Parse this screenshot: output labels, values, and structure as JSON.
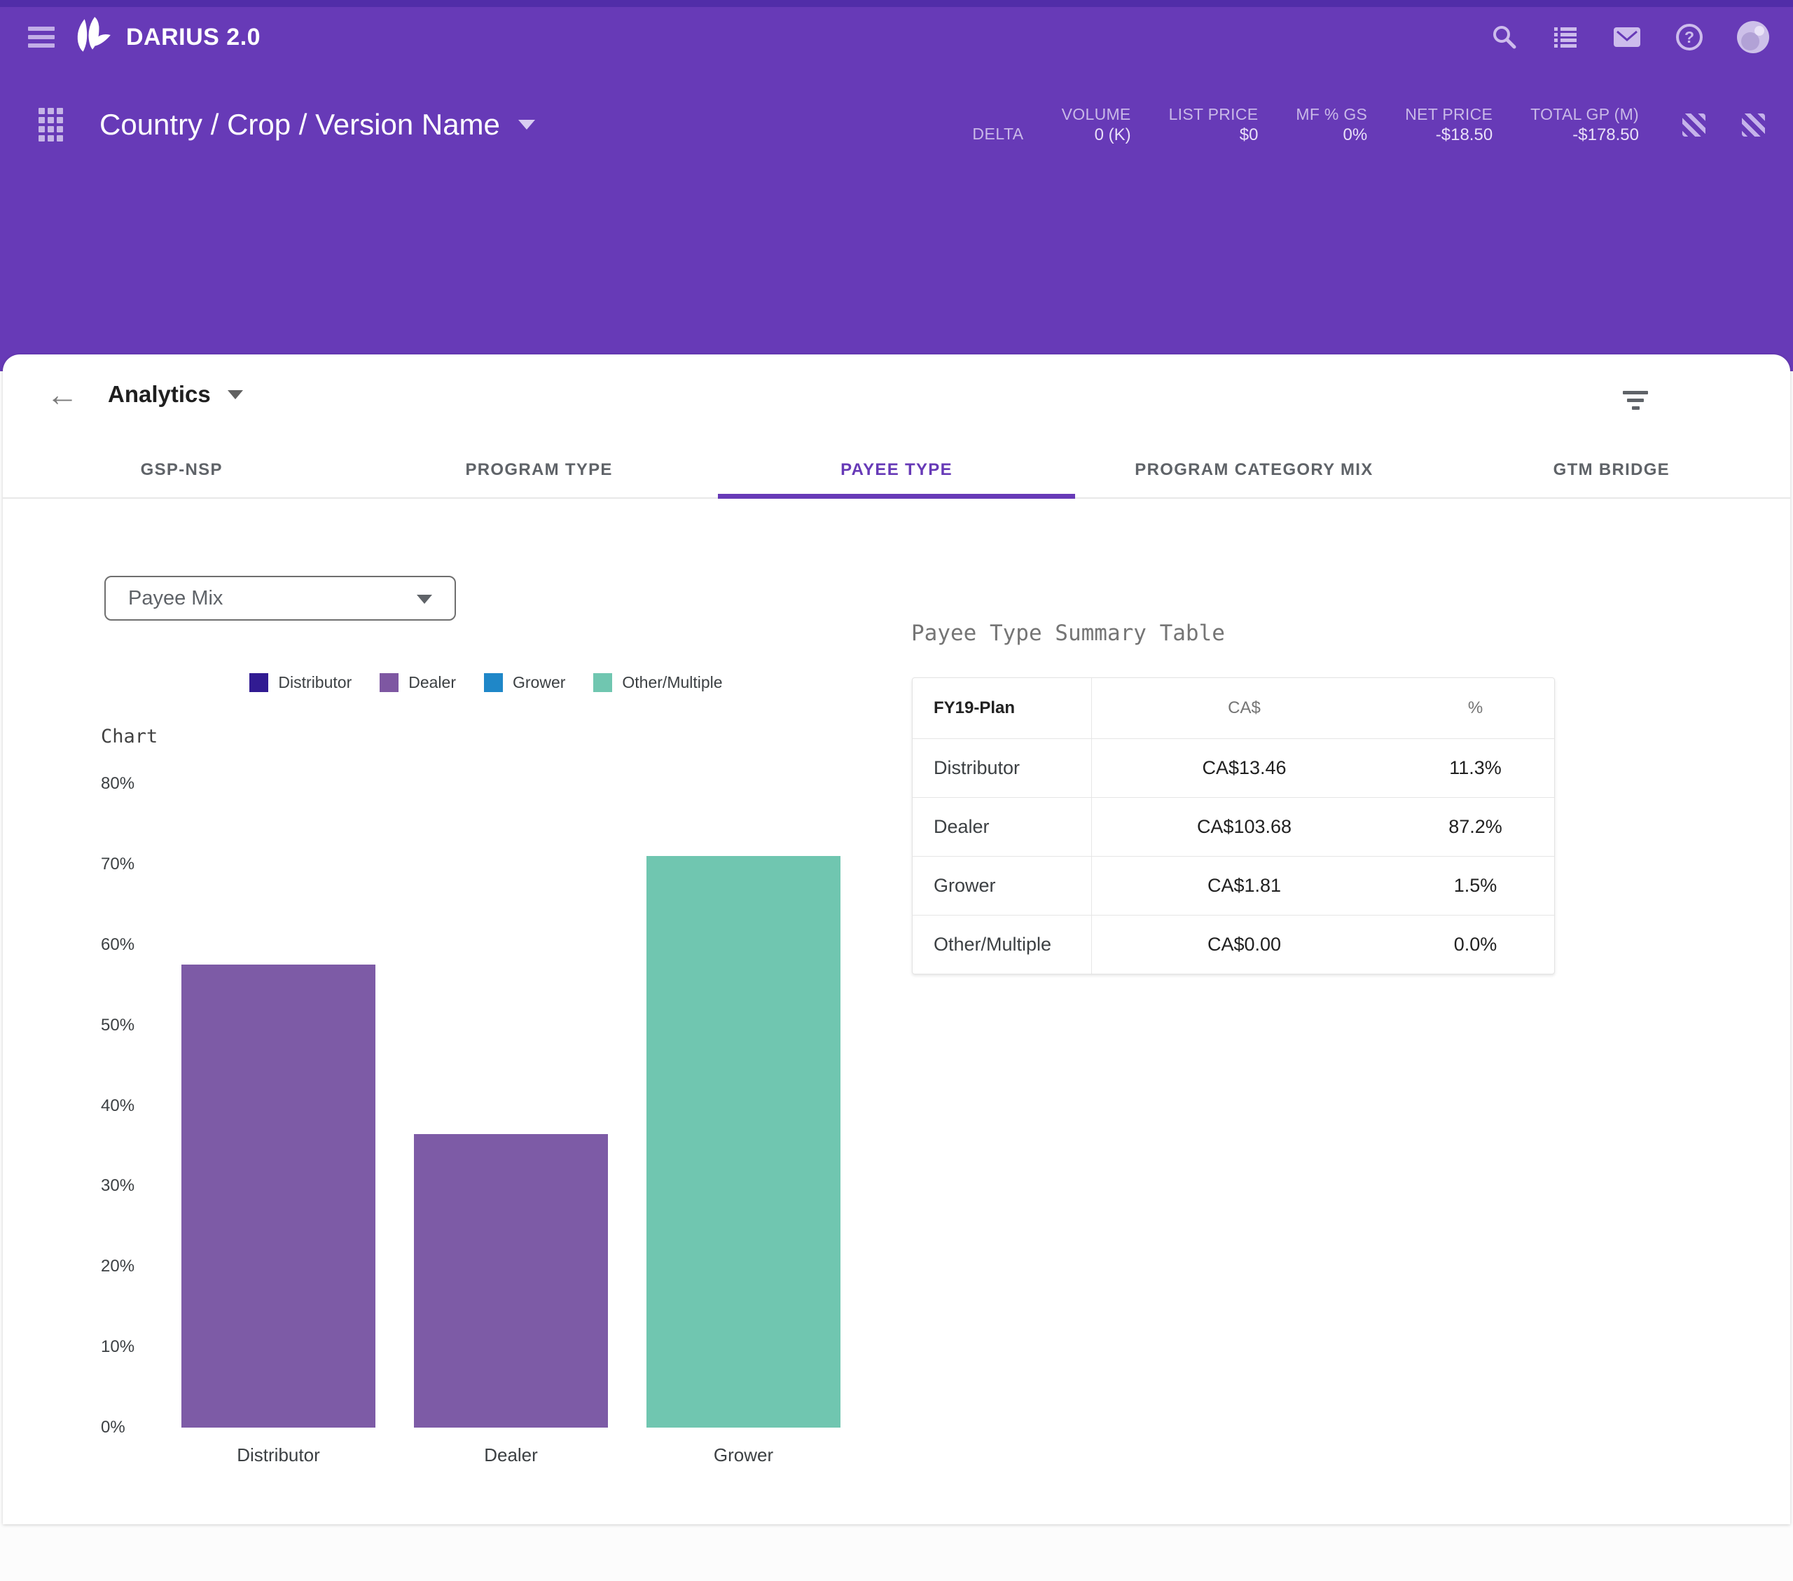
{
  "colors": {
    "app_bar": "#673ab7",
    "app_bar_top_strip": "#512da8",
    "accent": "#673ab7",
    "bar_purple": "#7d5ba6",
    "bar_teal": "#70c6b0"
  },
  "app_bar": {
    "title": "DARIUS 2.0",
    "icons": [
      "menu-icon",
      "logo-leaves-icon",
      "search-icon",
      "list-icon",
      "mail-icon",
      "help-icon",
      "account-avatar"
    ]
  },
  "context_bar": {
    "title": "Country / Crop / Version Name",
    "delta_label": "DELTA",
    "stats": [
      {
        "label": "VOLUME",
        "value": "0 (K)"
      },
      {
        "label": "LIST PRICE",
        "value": "$0"
      },
      {
        "label": "MF % GS",
        "value": "0%"
      },
      {
        "label": "NET PRICE",
        "value": "-$18.50"
      },
      {
        "label": "TOTAL GP (M)",
        "value": "-$178.50"
      }
    ],
    "icons": [
      "hatch-icon",
      "hatch-icon"
    ]
  },
  "analytics": {
    "title": "Analytics"
  },
  "tabs": {
    "active_index": 2,
    "items": [
      "GSP-NSP",
      "PROGRAM TYPE",
      "PAYEE TYPE",
      "PROGRAM CATEGORY MIX",
      "GTM BRIDGE"
    ]
  },
  "controls": {
    "view_select_value": "Payee Mix"
  },
  "legend": [
    {
      "label": "Distributor",
      "color": "#311b92"
    },
    {
      "label": "Dealer",
      "color": "#7e57a2"
    },
    {
      "label": "Grower",
      "color": "#1f87c8"
    },
    {
      "label": "Other/Multiple",
      "color": "#70c6b0"
    }
  ],
  "chart_data": {
    "type": "bar",
    "title": "Chart",
    "categories": [
      "Distributor",
      "Dealer",
      "Grower"
    ],
    "values": [
      57.5,
      36.5,
      71
    ],
    "bar_colors": [
      "#7d5ba6",
      "#7d5ba6",
      "#70c6b0"
    ],
    "xlabel": "",
    "ylabel": "",
    "ylim": [
      0,
      80
    ],
    "ytick_step": 10,
    "ytick_format": "percent",
    "grid": false,
    "legend_position": "top"
  },
  "summary_table": {
    "title": "Payee Type Summary Table",
    "columns": [
      "FY19-Plan",
      "CA$",
      "%"
    ],
    "rows": [
      {
        "label": "Distributor",
        "ca": "CA$13.46",
        "pct": "11.3%"
      },
      {
        "label": "Dealer",
        "ca": "CA$103.68",
        "pct": "87.2%"
      },
      {
        "label": "Grower",
        "ca": "CA$1.81",
        "pct": "1.5%"
      },
      {
        "label": "Other/Multiple",
        "ca": "CA$0.00",
        "pct": "0.0%"
      }
    ]
  }
}
